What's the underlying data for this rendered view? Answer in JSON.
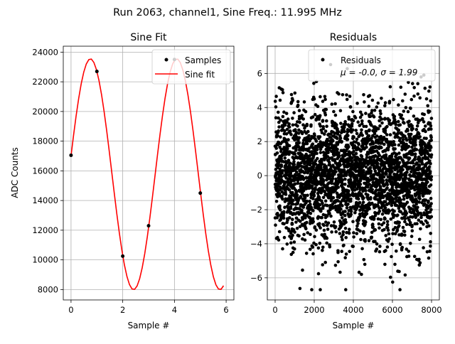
{
  "suptitle": "Run 2063, channel1, Sine Freq.: 11.995 MHz",
  "chart_data": [
    {
      "type": "line",
      "title": "Sine Fit",
      "xlabel": "Sample #",
      "ylabel": "ADC Counts",
      "xlim": [
        -0.3,
        6.3
      ],
      "ylim": [
        7300,
        24400
      ],
      "xticks": [
        0,
        2,
        4,
        6
      ],
      "yticks": [
        8000,
        10000,
        12000,
        14000,
        16000,
        18000,
        20000,
        22000,
        24000
      ],
      "grid": true,
      "legend": "top-right",
      "series": [
        {
          "name": "Samples",
          "kind": "scatter",
          "color": "#000000",
          "x": [
            0,
            1,
            2,
            3,
            4,
            5
          ],
          "y": [
            17050,
            22700,
            10250,
            12300,
            23500,
            14500
          ]
        },
        {
          "name": "Sine fit",
          "kind": "line",
          "color": "#ff0000",
          "fit": {
            "offset": 15770,
            "amplitude": 7780,
            "period": 3.34,
            "peak_x": 0.75
          },
          "x_range": [
            0,
            5.9
          ]
        }
      ]
    },
    {
      "type": "scatter",
      "title": "Residuals",
      "xlabel": "Sample #",
      "ylabel": "",
      "xlim": [
        -400,
        8400
      ],
      "ylim": [
        -7.3,
        7.6
      ],
      "xticks": [
        0,
        2000,
        4000,
        6000,
        8000
      ],
      "yticks": [
        -6,
        -4,
        -2,
        0,
        2,
        4,
        6
      ],
      "grid": true,
      "legend": "top-right",
      "series": [
        {
          "name": "Residuals",
          "color": "#000000",
          "n_points": 8000,
          "x_range": [
            0,
            7999
          ],
          "mean": 0.0,
          "sigma": 1.99
        }
      ],
      "legend_stats": "μ = -0.0, σ = 1.99"
    }
  ]
}
